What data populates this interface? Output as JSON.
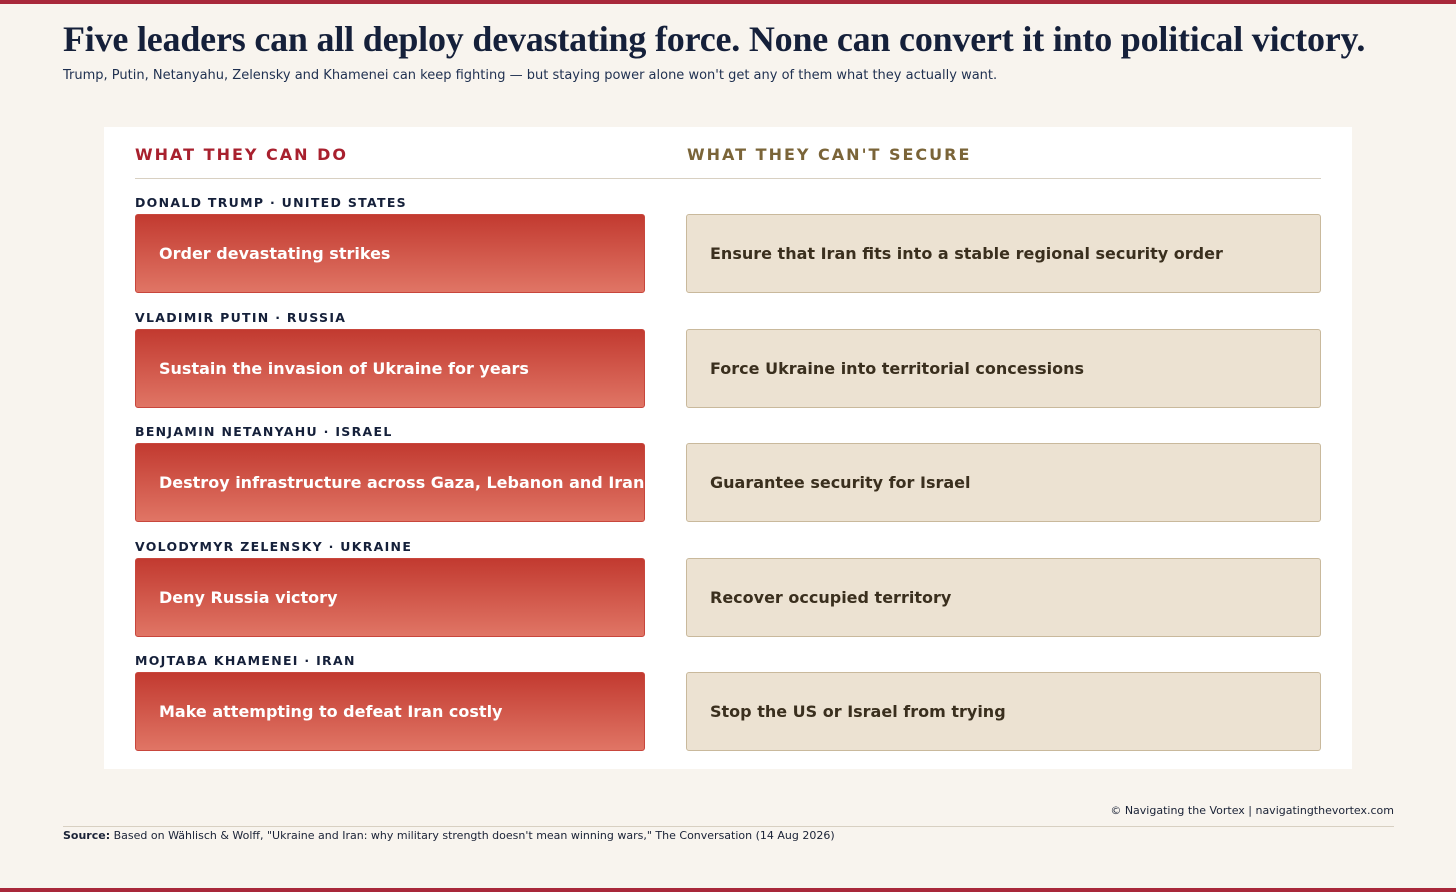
{
  "header": {
    "title": "Five leaders can all deploy devastating force. None can convert it into political victory.",
    "subtitle": "Trump, Putin, Netanyahu, Zelensky and Khamenei can keep fighting — but staying power alone won't get any of them what they actually want."
  },
  "columns": [
    "WHAT THEY CAN DO",
    "WHAT THEY CAN'T SECURE"
  ],
  "rows": [
    {
      "leader": "DONALD TRUMP · UNITED STATES",
      "can": "Order devastating strikes",
      "cannot": "Ensure that Iran fits into a stable regional security order"
    },
    {
      "leader": "VLADIMIR PUTIN · RUSSIA",
      "can": "Sustain the invasion of Ukraine for years",
      "cannot": "Force Ukraine into territorial concessions"
    },
    {
      "leader": "BENJAMIN NETANYAHU · ISRAEL",
      "can": "Destroy infrastructure across Gaza, Lebanon and Iran",
      "cannot": "Guarantee security for Israel"
    },
    {
      "leader": "VOLODYMYR ZELENSKY · UKRAINE",
      "can": "Deny Russia victory",
      "cannot": "Recover occupied territory"
    },
    {
      "leader": "MOJTABA KHAMENEI · IRAN",
      "can": "Make attempting to defeat Iran costly",
      "cannot": "Stop the US or Israel from trying"
    }
  ],
  "footer": {
    "credit": "© Navigating the Vortex | navigatingthevortex.com",
    "source_label": "Source:",
    "source": "Based on Wählisch & Wolff, \"Ukraine and Iran: why military strength doesn't mean winning wars,\" The Conversation (14 Aug 2026)"
  }
}
